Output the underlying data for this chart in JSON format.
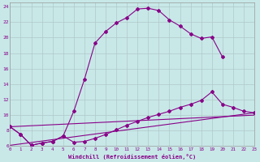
{
  "xlabel": "Windchill (Refroidissement éolien,°C)",
  "background_color": "#c8e8e8",
  "grid_color": "#b0c8c8",
  "line_color": "#880088",
  "xlim": [
    0,
    23
  ],
  "ylim": [
    6,
    24.5
  ],
  "yticks": [
    6,
    8,
    10,
    12,
    14,
    16,
    18,
    20,
    22,
    24
  ],
  "xticks": [
    0,
    1,
    2,
    3,
    4,
    5,
    6,
    7,
    8,
    9,
    10,
    11,
    12,
    13,
    14,
    15,
    16,
    17,
    18,
    19,
    20,
    21,
    22,
    23
  ],
  "series": [
    {
      "x": [
        0,
        1,
        2,
        3,
        4,
        5,
        6,
        7,
        8,
        9,
        10,
        11,
        12,
        13,
        14,
        15,
        16,
        17,
        18,
        19,
        20
      ],
      "y": [
        8.5,
        7.5,
        6.1,
        6.4,
        6.6,
        7.3,
        10.5,
        14.6,
        19.3,
        20.8,
        21.9,
        22.6,
        23.7,
        23.8,
        23.5,
        22.3,
        21.5,
        20.5,
        19.9,
        20.1,
        17.5
      ],
      "linestyle": "solid",
      "marker": "D",
      "markersize": 2.0
    },
    {
      "x": [
        0,
        1,
        2,
        3,
        4,
        5,
        6,
        7,
        8,
        9,
        10,
        11,
        12,
        13,
        14,
        15,
        16,
        17,
        18,
        19,
        20,
        21,
        22,
        23
      ],
      "y": [
        8.5,
        7.5,
        6.1,
        6.4,
        6.6,
        7.3,
        6.5,
        6.6,
        7.0,
        7.5,
        8.1,
        8.7,
        9.2,
        9.7,
        10.1,
        10.5,
        11.0,
        11.4,
        11.9,
        13.0,
        11.4,
        11.0,
        10.5,
        10.3
      ],
      "linestyle": "solid",
      "marker": "D",
      "markersize": 2.0
    },
    {
      "x": [
        0,
        23
      ],
      "y": [
        6.1,
        10.3
      ],
      "linestyle": "solid",
      "marker": null,
      "markersize": 0
    },
    {
      "x": [
        0,
        23
      ],
      "y": [
        8.5,
        10.0
      ],
      "linestyle": "solid",
      "marker": null,
      "markersize": 0
    }
  ]
}
